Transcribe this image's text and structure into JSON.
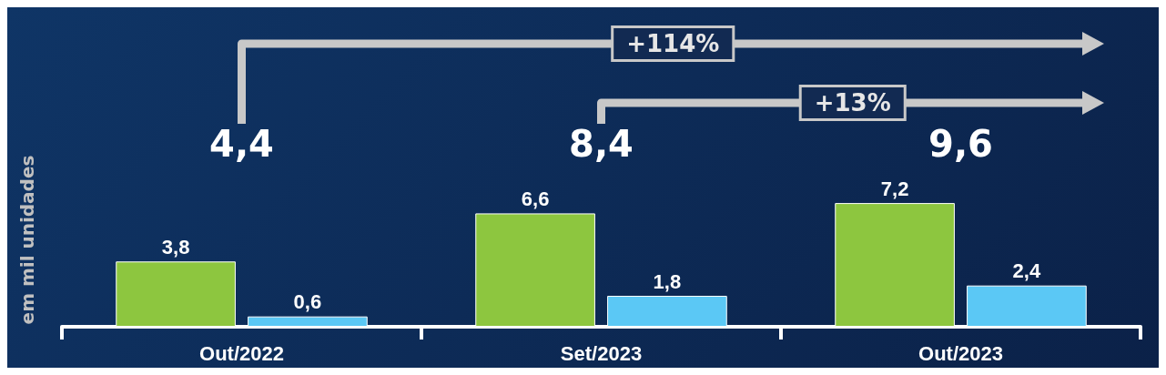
{
  "chart_data": {
    "type": "bar",
    "ylabel": "em mil unidades",
    "categories": [
      "Out/2022",
      "Set/2023",
      "Out/2023"
    ],
    "series": [
      {
        "color": "#8dc63f",
        "values": [
          3.8,
          6.6,
          7.2
        ],
        "value_labels": [
          "3,8",
          "6,6",
          "7,2"
        ]
      },
      {
        "color": "#5bc8f5",
        "values": [
          0.6,
          1.8,
          2.4
        ],
        "value_labels": [
          "0,6",
          "1,8",
          "2,4"
        ]
      }
    ],
    "totals": [
      "4,4",
      "8,4",
      "9,6"
    ],
    "annotations": [
      "+114%",
      "+13%"
    ]
  }
}
